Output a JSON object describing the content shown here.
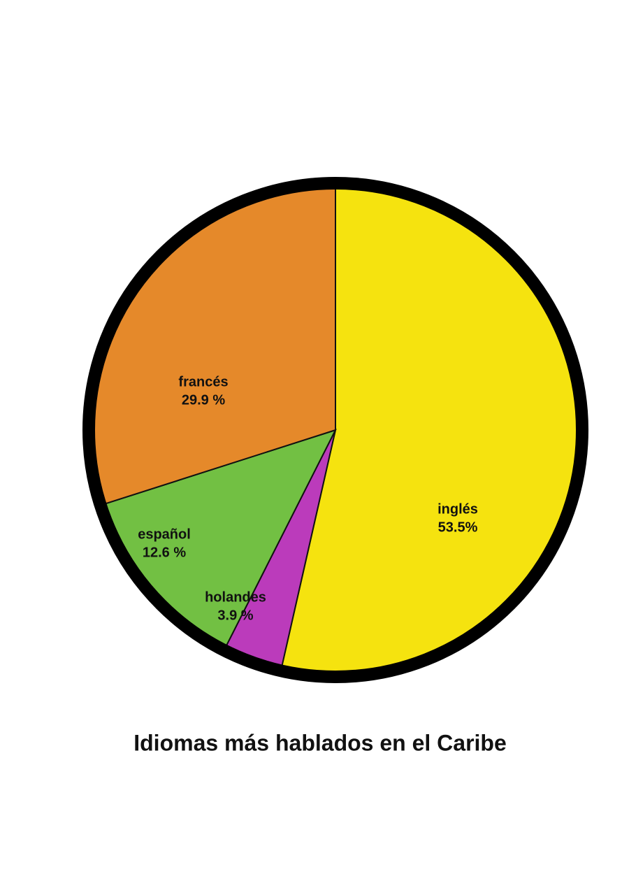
{
  "chart_data": {
    "type": "pie",
    "title": "Idiomas más hablados en el Caribe",
    "categories": [
      "inglés",
      "holandes",
      "español",
      "francés"
    ],
    "values": [
      53.5,
      3.9,
      12.6,
      29.9
    ],
    "value_labels": [
      "53.5%",
      "3.9 %",
      "12.6 %",
      "29.9 %"
    ],
    "colors": [
      "#f5e30f",
      "#bb3bbb",
      "#72c043",
      "#e5892a"
    ]
  }
}
